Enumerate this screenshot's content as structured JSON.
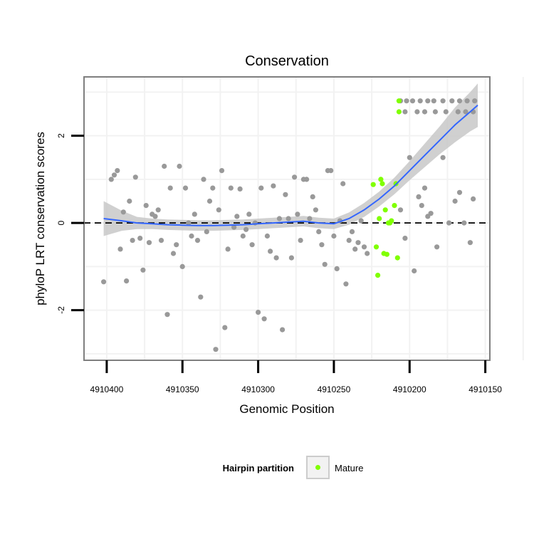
{
  "chart_data": {
    "type": "scatter",
    "title": "Conservation",
    "xlabel": "Genomic Position",
    "ylabel": "phyloP LRT conservation scores",
    "x_reversed": true,
    "xlim": [
      4910415,
      4910147
    ],
    "ylim": [
      -3.15,
      3.35
    ],
    "x_ticks": [
      4910400,
      4910350,
      4910300,
      4910250,
      4910200,
      4910150
    ],
    "x_tick_labels": [
      "4910400",
      "4910350",
      "4910300",
      "4910250",
      "4910200",
      "4910150"
    ],
    "y_ticks": [
      -2,
      0,
      2
    ],
    "y_tick_labels": [
      "-2",
      "0",
      "2"
    ],
    "reference_line": 0,
    "grid": true,
    "legend": {
      "title": "Hairpin partition",
      "position": "bottom",
      "entries": [
        "Mature"
      ]
    },
    "colors": {
      "other": "#999999",
      "mature": "#80ff00",
      "smooth": "#3366ff",
      "band": "#c8c8c8"
    },
    "series": [
      {
        "color": "#999999",
        "points": [
          [
            4910402,
            -1.35
          ],
          [
            4910397,
            1.0
          ],
          [
            4910395,
            1.1
          ],
          [
            4910393,
            1.2
          ],
          [
            4910391,
            -0.6
          ],
          [
            4910389,
            0.25
          ],
          [
            4910387,
            -1.33
          ],
          [
            4910385,
            0.5
          ],
          [
            4910383,
            -0.4
          ],
          [
            4910381,
            1.05
          ],
          [
            4910378,
            -0.35
          ],
          [
            4910376,
            -1.08
          ],
          [
            4910374,
            0.4
          ],
          [
            4910372,
            -0.45
          ],
          [
            4910370,
            0.2
          ],
          [
            4910368,
            0.15
          ],
          [
            4910366,
            0.3
          ],
          [
            4910364,
            -0.4
          ],
          [
            4910362,
            1.3
          ],
          [
            4910360,
            -2.1
          ],
          [
            4910358,
            0.8
          ],
          [
            4910356,
            -0.7
          ],
          [
            4910354,
            -0.5
          ],
          [
            4910352,
            1.3
          ],
          [
            4910350,
            -1.0
          ],
          [
            4910348,
            0.8
          ],
          [
            4910346,
            0.0
          ],
          [
            4910344,
            -0.3
          ],
          [
            4910342,
            0.2
          ],
          [
            4910340,
            -0.4
          ],
          [
            4910338,
            -1.7
          ],
          [
            4910336,
            1.0
          ],
          [
            4910334,
            -0.2
          ],
          [
            4910332,
            0.5
          ],
          [
            4910330,
            0.8
          ],
          [
            4910328,
            -2.9
          ],
          [
            4910326,
            0.3
          ],
          [
            4910324,
            1.2
          ],
          [
            4910322,
            -2.4
          ],
          [
            4910320,
            -0.6
          ],
          [
            4910318,
            0.8
          ],
          [
            4910316,
            -0.1
          ],
          [
            4910314,
            0.15
          ],
          [
            4910312,
            0.78
          ],
          [
            4910310,
            -0.3
          ],
          [
            4910308,
            -0.15
          ],
          [
            4910306,
            0.2
          ],
          [
            4910304,
            -0.5
          ],
          [
            4910302,
            0.0
          ],
          [
            4910300,
            -2.05
          ],
          [
            4910298,
            0.8
          ],
          [
            4910296,
            -2.2
          ],
          [
            4910294,
            -0.3
          ],
          [
            4910292,
            -0.65
          ],
          [
            4910290,
            0.85
          ],
          [
            4910288,
            -0.8
          ],
          [
            4910286,
            0.1
          ],
          [
            4910284,
            -2.45
          ],
          [
            4910282,
            0.65
          ],
          [
            4910280,
            0.1
          ],
          [
            4910278,
            -0.8
          ],
          [
            4910276,
            1.05
          ],
          [
            4910274,
            0.2
          ],
          [
            4910272,
            -0.4
          ],
          [
            4910270,
            1.0
          ],
          [
            4910268,
            1.0
          ],
          [
            4910266,
            0.1
          ],
          [
            4910264,
            0.6
          ],
          [
            4910262,
            0.3
          ],
          [
            4910260,
            -0.2
          ],
          [
            4910258,
            -0.5
          ],
          [
            4910256,
            -0.95
          ],
          [
            4910254,
            1.2
          ],
          [
            4910252,
            1.2
          ],
          [
            4910250,
            -0.3
          ],
          [
            4910248,
            -1.05
          ],
          [
            4910246,
            0.05
          ],
          [
            4910244,
            0.9
          ],
          [
            4910242,
            -1.4
          ],
          [
            4910240,
            -0.4
          ],
          [
            4910238,
            -0.2
          ],
          [
            4910236,
            -0.6
          ],
          [
            4910234,
            -0.45
          ],
          [
            4910232,
            0.05
          ],
          [
            4910230,
            -0.55
          ],
          [
            4910228,
            -0.7
          ],
          [
            4910206,
            0.3
          ],
          [
            4910203,
            -0.35
          ],
          [
            4910200,
            1.5
          ],
          [
            4910197,
            -1.1
          ],
          [
            4910194,
            0.6
          ],
          [
            4910192,
            0.4
          ],
          [
            4910190,
            0.8
          ],
          [
            4910188,
            0.15
          ],
          [
            4910186,
            0.22
          ],
          [
            4910182,
            -0.55
          ],
          [
            4910178,
            1.5
          ],
          [
            4910174,
            0.0
          ],
          [
            4910170,
            0.5
          ],
          [
            4910167,
            0.7
          ],
          [
            4910164,
            0.0
          ],
          [
            4910160,
            -0.45
          ],
          [
            4910158,
            0.55
          ],
          [
            4910206,
            2.8
          ],
          [
            4910202,
            2.8
          ],
          [
            4910198,
            2.8
          ],
          [
            4910193,
            2.8
          ],
          [
            4910188,
            2.8
          ],
          [
            4910184,
            2.8
          ],
          [
            4910178,
            2.8
          ],
          [
            4910172,
            2.8
          ],
          [
            4910167,
            2.8
          ],
          [
            4910162,
            2.8
          ],
          [
            4910157,
            2.8
          ],
          [
            4910203,
            2.55
          ],
          [
            4910195,
            2.55
          ],
          [
            4910190,
            2.55
          ],
          [
            4910183,
            2.55
          ],
          [
            4910176,
            2.55
          ],
          [
            4910168,
            2.55
          ],
          [
            4910163,
            2.55
          ],
          [
            4910158,
            2.55
          ]
        ]
      },
      {
        "name": "Mature",
        "color": "#80ff00",
        "points": [
          [
            4910224,
            0.88
          ],
          [
            4910222,
            -0.55
          ],
          [
            4910221,
            -1.2
          ],
          [
            4910220,
            0.1
          ],
          [
            4910219,
            1.0
          ],
          [
            4910218,
            0.9
          ],
          [
            4910217,
            -0.7
          ],
          [
            4910216,
            0.3
          ],
          [
            4910215,
            -0.72
          ],
          [
            4910214,
            0.0
          ],
          [
            4910213,
            0.0
          ],
          [
            4910212,
            0.05
          ],
          [
            4910210,
            0.4
          ],
          [
            4910209,
            0.9
          ],
          [
            4910208,
            -0.8
          ],
          [
            4910207,
            2.8
          ],
          [
            4910207,
            2.55
          ]
        ]
      }
    ],
    "smooth": {
      "color": "#3366ff",
      "x": [
        4910402,
        4910390,
        4910380,
        4910370,
        4910360,
        4910350,
        4910340,
        4910330,
        4910320,
        4910310,
        4910300,
        4910290,
        4910280,
        4910270,
        4910260,
        4910250,
        4910240,
        4910230,
        4910220,
        4910210,
        4910200,
        4910190,
        4910180,
        4910170,
        4910160,
        4910155
      ],
      "y": [
        0.1,
        0.05,
        0.0,
        -0.02,
        -0.04,
        -0.05,
        -0.06,
        -0.06,
        -0.05,
        -0.04,
        -0.02,
        0.0,
        0.02,
        0.04,
        0.0,
        -0.02,
        0.1,
        0.3,
        0.55,
        0.85,
        1.2,
        1.55,
        1.9,
        2.25,
        2.55,
        2.7
      ],
      "lower": [
        -0.3,
        -0.18,
        -0.14,
        -0.14,
        -0.16,
        -0.17,
        -0.18,
        -0.18,
        -0.17,
        -0.16,
        -0.14,
        -0.12,
        -0.1,
        -0.08,
        -0.12,
        -0.14,
        -0.04,
        0.14,
        0.38,
        0.66,
        0.98,
        1.28,
        1.58,
        1.85,
        2.1,
        2.2
      ],
      "upper": [
        0.5,
        0.28,
        0.14,
        0.1,
        0.08,
        0.07,
        0.06,
        0.06,
        0.07,
        0.08,
        0.1,
        0.12,
        0.14,
        0.16,
        0.12,
        0.1,
        0.24,
        0.46,
        0.72,
        1.04,
        1.42,
        1.82,
        2.22,
        2.65,
        3.0,
        3.2
      ]
    }
  }
}
